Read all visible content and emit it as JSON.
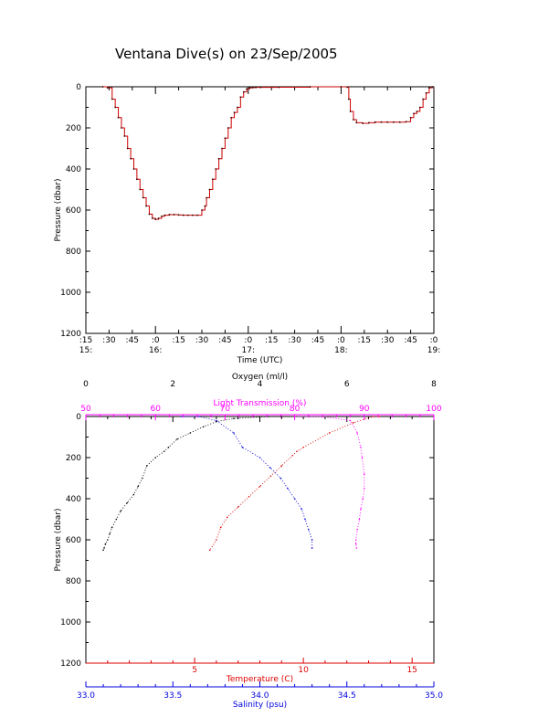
{
  "page_title": "Ventana Dive(s) on 23/Sep/2005",
  "colors": {
    "axis": "#000000",
    "pressure_trace": "#cc0000",
    "oxygen": "#000000",
    "transmission": "#ff00ff",
    "temperature": "#dd0000",
    "salinity": "#0000dd"
  },
  "chart_data": [
    {
      "type": "line",
      "title": "Ventana Dive(s) on 23/Sep/2005",
      "xlabel": "Time (UTC)",
      "ylabel": "Pressure (dbar)",
      "y_reversed": true,
      "ylim": [
        1200,
        0
      ],
      "y_ticks": [
        "0",
        "200",
        "400",
        "600",
        "800",
        "1000",
        "1200"
      ],
      "xlim_minutes": [
        15,
        240
      ],
      "x_tick_minutes": [
        15,
        30,
        45,
        60,
        75,
        90,
        105,
        120,
        135,
        150,
        165,
        180,
        195,
        210,
        225,
        240
      ],
      "x_tick_labels_top": [
        ":15",
        ":30",
        ":45",
        ":0",
        ":15",
        ":30",
        ":45",
        ":0",
        ":15",
        ":30",
        ":45",
        ":0",
        ":15",
        ":30",
        ":45",
        ":0"
      ],
      "x_tick_labels_bottom": [
        "15:",
        "",
        "",
        "16:",
        "",
        "",
        "",
        "17:",
        "",
        "",
        "",
        "18:",
        "",
        "",
        "",
        "19:"
      ],
      "x_major_minutes": [
        15,
        60,
        120,
        180,
        240
      ],
      "series": [
        {
          "x_minutes": [
            26,
            29,
            32,
            34,
            36,
            38,
            40,
            42,
            44,
            46,
            48,
            50,
            52,
            54,
            56,
            58,
            60,
            62,
            64,
            66,
            69,
            72,
            75,
            78,
            81,
            84,
            87,
            90,
            92,
            93,
            95,
            97,
            99,
            101,
            103,
            105,
            107,
            109,
            111,
            113,
            115,
            117,
            119,
            121,
            123,
            125,
            128,
            140,
            160,
            180,
            184,
            185,
            186,
            188,
            190,
            194,
            198,
            202,
            206,
            210,
            214,
            218,
            222,
            225,
            227,
            229,
            231,
            233,
            235,
            237,
            239
          ],
          "pressure": [
            0,
            5,
            60,
            100,
            150,
            200,
            240,
            300,
            350,
            400,
            450,
            500,
            540,
            580,
            620,
            640,
            645,
            640,
            630,
            625,
            622,
            622,
            624,
            625,
            625,
            625,
            625,
            600,
            580,
            540,
            500,
            450,
            400,
            350,
            300,
            250,
            200,
            150,
            125,
            100,
            50,
            25,
            10,
            5,
            4,
            3,
            3,
            2,
            0,
            0,
            2,
            60,
            120,
            160,
            175,
            178,
            175,
            172,
            172,
            172,
            172,
            172,
            170,
            150,
            130,
            120,
            100,
            60,
            30,
            5,
            0
          ]
        }
      ]
    },
    {
      "type": "scatter",
      "ylabel": "Pressure (dbar)",
      "y_reversed": true,
      "ylim": [
        1200,
        0
      ],
      "y_ticks": [
        "0",
        "200",
        "400",
        "600",
        "800",
        "1000",
        "1200"
      ],
      "axes": {
        "oxygen": {
          "label": "Oxygen (ml/l)",
          "range": [
            0,
            8
          ],
          "major_ticks": [
            0,
            2,
            4,
            6,
            8
          ],
          "tick_labels": [
            "0",
            "2",
            "4",
            "6",
            "8"
          ]
        },
        "transmission": {
          "label": "Light Transmission (%)",
          "range": [
            50,
            100
          ],
          "major_ticks": [
            50,
            60,
            70,
            80,
            90,
            100
          ],
          "tick_labels": [
            "50",
            "60",
            "70",
            "80",
            "90",
            "100"
          ]
        },
        "temperature": {
          "label": "Temperature (C)",
          "range": [
            0,
            16
          ],
          "major_ticks": [
            5,
            10,
            15
          ],
          "tick_labels": [
            "5",
            "10",
            "15"
          ]
        },
        "salinity": {
          "label": "Salinity (psu)",
          "range": [
            33.0,
            35.0
          ],
          "major_ticks": [
            33.0,
            33.5,
            34.0,
            34.5,
            35.0
          ],
          "tick_labels": [
            "33.0",
            "33.5",
            "34.0",
            "34.5",
            "35.0"
          ]
        }
      },
      "series": [
        {
          "name": "Oxygen (ml/l)",
          "x": [
            4.5,
            4.2,
            3.4,
            3.0,
            2.7,
            2.4,
            2.1,
            1.9,
            1.8,
            1.6,
            1.4,
            1.3,
            1.2,
            1.1,
            0.95,
            0.8,
            0.7,
            0.6,
            0.55,
            0.5,
            0.45,
            0.42,
            0.4
          ],
          "pressure": [
            0,
            0,
            10,
            25,
            50,
            80,
            110,
            150,
            170,
            200,
            240,
            300,
            340,
            380,
            420,
            460,
            500,
            540,
            570,
            600,
            620,
            640,
            650
          ]
        },
        {
          "name": "Light Transmission (%)",
          "x": [
            80,
            84,
            88,
            89,
            89.5,
            89.7,
            90,
            90,
            89.8,
            89.5,
            89.3,
            89.0,
            88.8,
            88.8,
            88.9
          ],
          "pressure": [
            0,
            0,
            20,
            80,
            150,
            200,
            280,
            350,
            400,
            450,
            500,
            550,
            600,
            620,
            640
          ]
        },
        {
          "name": "Temperature (C)",
          "x": [
            13.5,
            13.2,
            12.3,
            11.2,
            10.0,
            9.7,
            9.5,
            9.0,
            8.5,
            8.0,
            7.5,
            7.0,
            6.5,
            6.2,
            6.0,
            5.7
          ],
          "pressure": [
            0,
            0,
            30,
            80,
            150,
            170,
            190,
            240,
            290,
            340,
            390,
            440,
            490,
            540,
            600,
            650
          ]
        },
        {
          "name": "Salinity (psu)",
          "x": [
            33.55,
            33.65,
            33.75,
            33.85,
            33.9,
            34.0,
            34.06,
            34.12,
            34.16,
            34.2,
            34.24,
            34.26,
            34.28,
            34.3,
            34.3
          ],
          "pressure": [
            0,
            0,
            20,
            80,
            150,
            200,
            250,
            300,
            350,
            400,
            450,
            500,
            550,
            600,
            640
          ]
        }
      ]
    }
  ]
}
